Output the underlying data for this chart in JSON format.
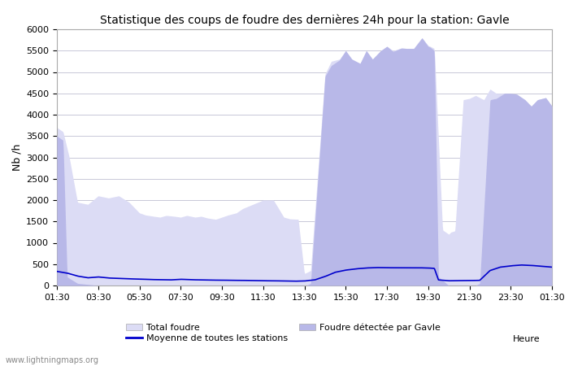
{
  "title": "Statistique des coups de foudre des dernières 24h pour la station: Gavle",
  "ylabel": "Nb /h",
  "xlabel_label": "Heure",
  "ylim": [
    0,
    6000
  ],
  "yticks": [
    0,
    500,
    1000,
    1500,
    2000,
    2500,
    3000,
    3500,
    4000,
    4500,
    5000,
    5500,
    6000
  ],
  "xtick_labels": [
    "01:30",
    "03:30",
    "05:30",
    "07:30",
    "09:30",
    "11:30",
    "13:30",
    "15:30",
    "17:30",
    "19:30",
    "21:30",
    "23:30",
    "01:30"
  ],
  "background_color": "#ffffff",
  "plot_bg_color": "#ffffff",
  "grid_color": "#c8c8d8",
  "color_total": "#dcdcf5",
  "color_gavle": "#b8b8e8",
  "color_mean": "#0000cc",
  "watermark": "www.lightningmaps.org",
  "legend_labels": [
    "Total foudre",
    "Moyenne de toutes les stations",
    "Foudre détectée par Gavle"
  ],
  "total_x": [
    0,
    0.3,
    0.6,
    1.0,
    1.5,
    2.0,
    2.5,
    3.0,
    3.5,
    4.0,
    4.3,
    4.7,
    5.0,
    5.3,
    5.7,
    6.0,
    6.3,
    6.7,
    7.0,
    7.3,
    7.7,
    8.0,
    8.3,
    8.7,
    9.0,
    9.5,
    10.0,
    10.5,
    11.0,
    11.3,
    11.7,
    12.0,
    12.1,
    12.3,
    13.0,
    13.3,
    13.7,
    14.0,
    14.3,
    14.7,
    15.0,
    15.3,
    15.7,
    16.0,
    16.3,
    16.7,
    17.0,
    17.3,
    17.7,
    18.0,
    18.1,
    18.3,
    18.7,
    19.0,
    19.1,
    19.3,
    19.7,
    20.0,
    20.3,
    20.7,
    21.0,
    21.3,
    21.7,
    22.0,
    22.3,
    22.7,
    23.0,
    23.3,
    23.7,
    24.0
  ],
  "total_y": [
    3700,
    3600,
    3000,
    1950,
    1900,
    2100,
    2050,
    2100,
    1950,
    1700,
    1650,
    1620,
    1600,
    1640,
    1620,
    1600,
    1640,
    1600,
    1620,
    1580,
    1550,
    1600,
    1650,
    1700,
    1800,
    1900,
    2000,
    2000,
    1600,
    1560,
    1550,
    280,
    300,
    350,
    4950,
    5250,
    5300,
    5500,
    5300,
    5200,
    5500,
    5300,
    5500,
    5600,
    5500,
    5560,
    5550,
    5550,
    5800,
    5620,
    5600,
    5550,
    1300,
    1200,
    1250,
    1280,
    4350,
    4380,
    4450,
    4350,
    4600,
    4500,
    4500,
    4350,
    4200,
    4200,
    4200,
    4350,
    4400,
    4200
  ],
  "gavle_x": [
    0,
    0.3,
    0.5,
    1.0,
    2.0,
    10.0,
    11.0,
    11.5,
    12.0,
    12.1,
    12.3,
    13.0,
    13.3,
    13.7,
    14.0,
    14.3,
    14.7,
    15.0,
    15.3,
    15.7,
    16.0,
    16.3,
    16.7,
    17.0,
    17.3,
    17.7,
    18.0,
    18.1,
    18.3,
    18.5,
    19.0,
    19.5,
    20.0,
    20.3,
    20.5,
    21.0,
    21.3,
    21.7,
    22.0,
    22.3,
    22.7,
    23.0,
    23.3,
    23.7,
    24.0
  ],
  "gavle_y": [
    3500,
    3400,
    200,
    50,
    0,
    0,
    0,
    0,
    0,
    0,
    50,
    4900,
    5150,
    5280,
    5500,
    5300,
    5200,
    5500,
    5300,
    5500,
    5600,
    5480,
    5560,
    5550,
    5550,
    5800,
    5600,
    5580,
    5500,
    200,
    0,
    0,
    0,
    0,
    50,
    4350,
    4380,
    4500,
    4500,
    4480,
    4350,
    4200,
    4350,
    4400,
    4200
  ],
  "mean_x": [
    0,
    0.5,
    1.0,
    1.5,
    2.0,
    2.5,
    3.0,
    3.5,
    4.0,
    4.5,
    5.0,
    5.5,
    6.0,
    6.5,
    7.0,
    7.5,
    8.0,
    8.5,
    9.0,
    9.5,
    10.0,
    10.5,
    11.0,
    11.5,
    12.0,
    12.5,
    13.0,
    13.5,
    14.0,
    14.5,
    15.0,
    15.5,
    16.0,
    16.5,
    17.0,
    17.5,
    18.0,
    18.3,
    18.5,
    19.0,
    19.5,
    20.0,
    20.5,
    21.0,
    21.5,
    22.0,
    22.5,
    23.0,
    23.5,
    24.0
  ],
  "mean_y": [
    330,
    290,
    220,
    180,
    200,
    175,
    165,
    155,
    150,
    140,
    135,
    130,
    145,
    135,
    130,
    125,
    125,
    120,
    120,
    115,
    110,
    110,
    105,
    100,
    105,
    130,
    210,
    310,
    360,
    390,
    410,
    420,
    415,
    415,
    415,
    415,
    410,
    400,
    130,
    110,
    115,
    115,
    120,
    350,
    430,
    460,
    480,
    470,
    450,
    430
  ]
}
